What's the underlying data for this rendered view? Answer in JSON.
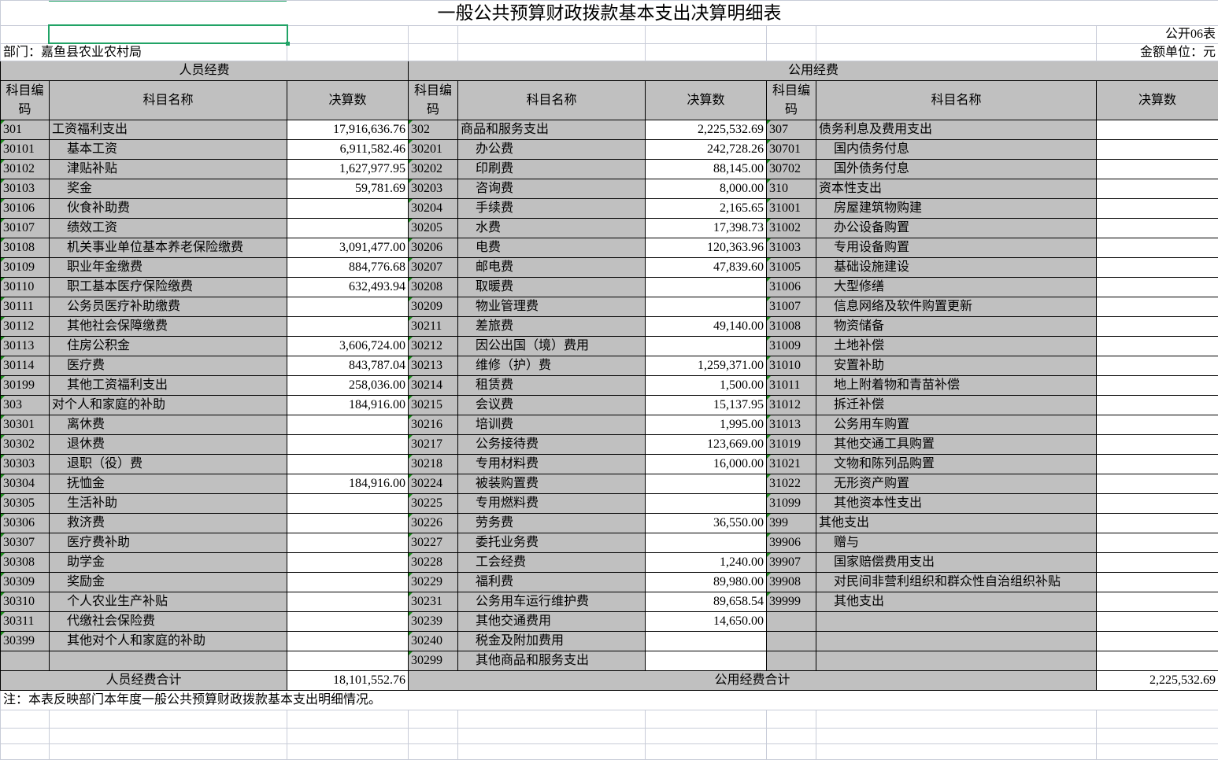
{
  "title": "一般公共预算财政拨款基本支出决算明细表",
  "form_no": "公开06表",
  "department": "部门：嘉鱼县农业农村局",
  "unit": "金额单位：元",
  "sections": {
    "personnel": "人员经费",
    "public": "公用经费"
  },
  "columns": {
    "code": "科目编码",
    "name": "科目名称",
    "amount": "决算数"
  },
  "personnel_rows": [
    {
      "code": "301",
      "name": "工资福利支出",
      "amount": "17,916,636.76"
    },
    {
      "code": "30101",
      "name": "基本工资",
      "amount": "6,911,582.46"
    },
    {
      "code": "30102",
      "name": "津贴补贴",
      "amount": "1,627,977.95"
    },
    {
      "code": "30103",
      "name": "奖金",
      "amount": "59,781.69"
    },
    {
      "code": "30106",
      "name": "伙食补助费",
      "amount": ""
    },
    {
      "code": "30107",
      "name": "绩效工资",
      "amount": ""
    },
    {
      "code": "30108",
      "name": "机关事业单位基本养老保险缴费",
      "amount": "3,091,477.00"
    },
    {
      "code": "30109",
      "name": "职业年金缴费",
      "amount": "884,776.68"
    },
    {
      "code": "30110",
      "name": "职工基本医疗保险缴费",
      "amount": "632,493.94"
    },
    {
      "code": "30111",
      "name": "公务员医疗补助缴费",
      "amount": ""
    },
    {
      "code": "30112",
      "name": "其他社会保障缴费",
      "amount": ""
    },
    {
      "code": "30113",
      "name": "住房公积金",
      "amount": "3,606,724.00"
    },
    {
      "code": "30114",
      "name": "医疗费",
      "amount": "843,787.04"
    },
    {
      "code": "30199",
      "name": "其他工资福利支出",
      "amount": "258,036.00"
    },
    {
      "code": "303",
      "name": "对个人和家庭的补助",
      "amount": "184,916.00"
    },
    {
      "code": "30301",
      "name": "离休费",
      "amount": ""
    },
    {
      "code": "30302",
      "name": "退休费",
      "amount": ""
    },
    {
      "code": "30303",
      "name": "退职（役）费",
      "amount": ""
    },
    {
      "code": "30304",
      "name": "抚恤金",
      "amount": "184,916.00"
    },
    {
      "code": "30305",
      "name": "生活补助",
      "amount": ""
    },
    {
      "code": "30306",
      "name": "救济费",
      "amount": ""
    },
    {
      "code": "30307",
      "name": "医疗费补助",
      "amount": ""
    },
    {
      "code": "30308",
      "name": "助学金",
      "amount": ""
    },
    {
      "code": "30309",
      "name": "奖励金",
      "amount": ""
    },
    {
      "code": "30310",
      "name": "个人农业生产补贴",
      "amount": ""
    },
    {
      "code": "30311",
      "name": "代缴社会保险费",
      "amount": ""
    },
    {
      "code": "30399",
      "name": "其他对个人和家庭的补助",
      "amount": ""
    },
    {
      "code": "",
      "name": "",
      "amount": ""
    }
  ],
  "public_rows_a": [
    {
      "code": "302",
      "name": "商品和服务支出",
      "amount": "2,225,532.69"
    },
    {
      "code": "30201",
      "name": "办公费",
      "amount": "242,728.26"
    },
    {
      "code": "30202",
      "name": "印刷费",
      "amount": "88,145.00"
    },
    {
      "code": "30203",
      "name": "咨询费",
      "amount": "8,000.00"
    },
    {
      "code": "30204",
      "name": "手续费",
      "amount": "2,165.65"
    },
    {
      "code": "30205",
      "name": "水费",
      "amount": "17,398.73"
    },
    {
      "code": "30206",
      "name": "电费",
      "amount": "120,363.96"
    },
    {
      "code": "30207",
      "name": "邮电费",
      "amount": "47,839.60"
    },
    {
      "code": "30208",
      "name": "取暖费",
      "amount": ""
    },
    {
      "code": "30209",
      "name": "物业管理费",
      "amount": ""
    },
    {
      "code": "30211",
      "name": "差旅费",
      "amount": "49,140.00"
    },
    {
      "code": "30212",
      "name": "因公出国（境）费用",
      "amount": ""
    },
    {
      "code": "30213",
      "name": "维修（护）费",
      "amount": "1,259,371.00"
    },
    {
      "code": "30214",
      "name": "租赁费",
      "amount": "1,500.00"
    },
    {
      "code": "30215",
      "name": "会议费",
      "amount": "15,137.95"
    },
    {
      "code": "30216",
      "name": "培训费",
      "amount": "1,995.00"
    },
    {
      "code": "30217",
      "name": "公务接待费",
      "amount": "123,669.00"
    },
    {
      "code": "30218",
      "name": "专用材料费",
      "amount": "16,000.00"
    },
    {
      "code": "30224",
      "name": "被装购置费",
      "amount": ""
    },
    {
      "code": "30225",
      "name": "专用燃料费",
      "amount": ""
    },
    {
      "code": "30226",
      "name": "劳务费",
      "amount": "36,550.00"
    },
    {
      "code": "30227",
      "name": "委托业务费",
      "amount": ""
    },
    {
      "code": "30228",
      "name": "工会经费",
      "amount": "1,240.00"
    },
    {
      "code": "30229",
      "name": "福利费",
      "amount": "89,980.00"
    },
    {
      "code": "30231",
      "name": "公务用车运行维护费",
      "amount": "89,658.54"
    },
    {
      "code": "30239",
      "name": "其他交通费用",
      "amount": "14,650.00"
    },
    {
      "code": "30240",
      "name": "税金及附加费用",
      "amount": ""
    },
    {
      "code": "30299",
      "name": "其他商品和服务支出",
      "amount": ""
    }
  ],
  "public_rows_b": [
    {
      "code": "307",
      "name": "债务利息及费用支出",
      "amount": ""
    },
    {
      "code": "30701",
      "name": "国内债务付息",
      "amount": ""
    },
    {
      "code": "30702",
      "name": "国外债务付息",
      "amount": ""
    },
    {
      "code": "310",
      "name": "资本性支出",
      "amount": ""
    },
    {
      "code": "31001",
      "name": "房屋建筑物购建",
      "amount": ""
    },
    {
      "code": "31002",
      "name": "办公设备购置",
      "amount": ""
    },
    {
      "code": "31003",
      "name": "专用设备购置",
      "amount": ""
    },
    {
      "code": "31005",
      "name": "基础设施建设",
      "amount": ""
    },
    {
      "code": "31006",
      "name": "大型修缮",
      "amount": ""
    },
    {
      "code": "31007",
      "name": "信息网络及软件购置更新",
      "amount": ""
    },
    {
      "code": "31008",
      "name": "物资储备",
      "amount": ""
    },
    {
      "code": "31009",
      "name": "土地补偿",
      "amount": ""
    },
    {
      "code": "31010",
      "name": "安置补助",
      "amount": ""
    },
    {
      "code": "31011",
      "name": "地上附着物和青苗补偿",
      "amount": ""
    },
    {
      "code": "31012",
      "name": "拆迁补偿",
      "amount": ""
    },
    {
      "code": "31013",
      "name": "公务用车购置",
      "amount": ""
    },
    {
      "code": "31019",
      "name": "其他交通工具购置",
      "amount": ""
    },
    {
      "code": "31021",
      "name": "文物和陈列品购置",
      "amount": ""
    },
    {
      "code": "31022",
      "name": "无形资产购置",
      "amount": ""
    },
    {
      "code": "31099",
      "name": "其他资本性支出",
      "amount": ""
    },
    {
      "code": "399",
      "name": "其他支出",
      "amount": ""
    },
    {
      "code": "39906",
      "name": "赠与",
      "amount": ""
    },
    {
      "code": "39907",
      "name": "国家赔偿费用支出",
      "amount": ""
    },
    {
      "code": "39908",
      "name": "对民间非营利组织和群众性自治组织补贴",
      "amount": ""
    },
    {
      "code": "39999",
      "name": "其他支出",
      "amount": ""
    },
    {
      "code": "",
      "name": "",
      "amount": ""
    },
    {
      "code": "",
      "name": "",
      "amount": ""
    },
    {
      "code": "",
      "name": "",
      "amount": ""
    }
  ],
  "totals": {
    "personnel_label": "人员经费合计",
    "personnel_amount": "18,101,552.76",
    "public_label": "公用经费合计",
    "public_amount": "2,225,532.69"
  },
  "note": "注：本表反映部门本年度一般公共预算财政拨款基本支出明细情况。",
  "colors": {
    "header_fill": "#c0c0c0",
    "selection": "#21a366",
    "gridline": "#c8ccd8"
  }
}
